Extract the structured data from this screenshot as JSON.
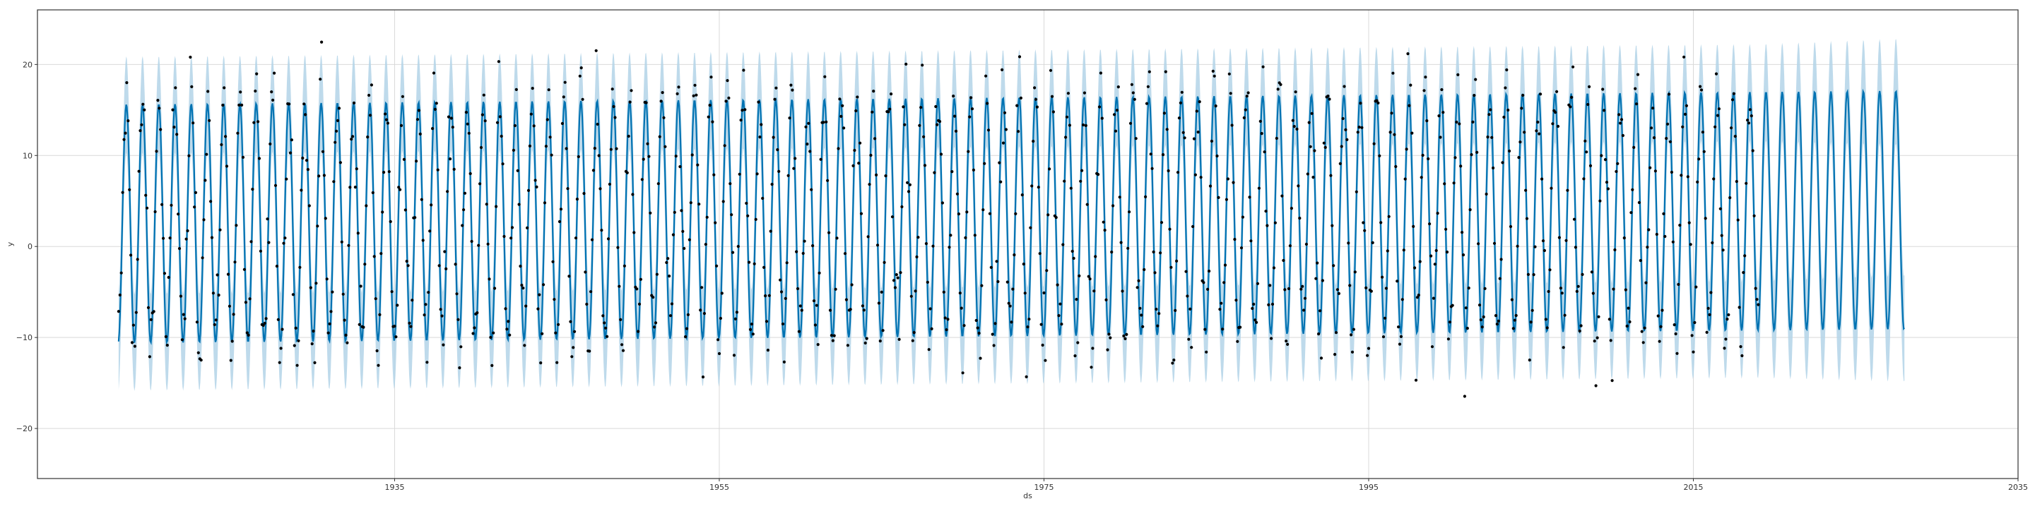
{
  "chart_data": {
    "type": "line",
    "title": "",
    "xlabel": "ds",
    "ylabel": "y",
    "x_range": [
      1913.0,
      2035.0
    ],
    "ylim": [
      -25.5,
      26.0
    ],
    "x_ticks": [
      1935,
      1955,
      1975,
      1995,
      2015,
      2035
    ],
    "x_tick_labels": [
      "1935",
      "1955",
      "1975",
      "1995",
      "2015",
      "2035"
    ],
    "y_ticks": [
      -20,
      -10,
      0,
      10,
      20
    ],
    "y_tick_labels": [
      "−20",
      "−10",
      "0",
      "10",
      "20"
    ],
    "grid": true,
    "legend": "none",
    "colors": {
      "forecast_line": "#0072B2",
      "uncertainty_band": "#b3d4e8",
      "observations": "#000000",
      "grid": "#d9d9d9",
      "axes": "#333333"
    },
    "observations_range": [
      1918.0,
      2019.0
    ],
    "forecast_end": 2028.0,
    "seasonal_model": {
      "period_years": 1.0,
      "mean": 2.5,
      "amplitude_start": 13.1,
      "amplitude_end": 13.1,
      "mean_end": 4.0,
      "band_halfwidth": 5.3,
      "band_halfwidth_end": 5.8
    },
    "series": [
      {
        "name": "yhat",
        "kind": "line"
      },
      {
        "name": "uncertainty",
        "kind": "band"
      },
      {
        "name": "observed",
        "kind": "points"
      }
    ],
    "annotations": []
  }
}
